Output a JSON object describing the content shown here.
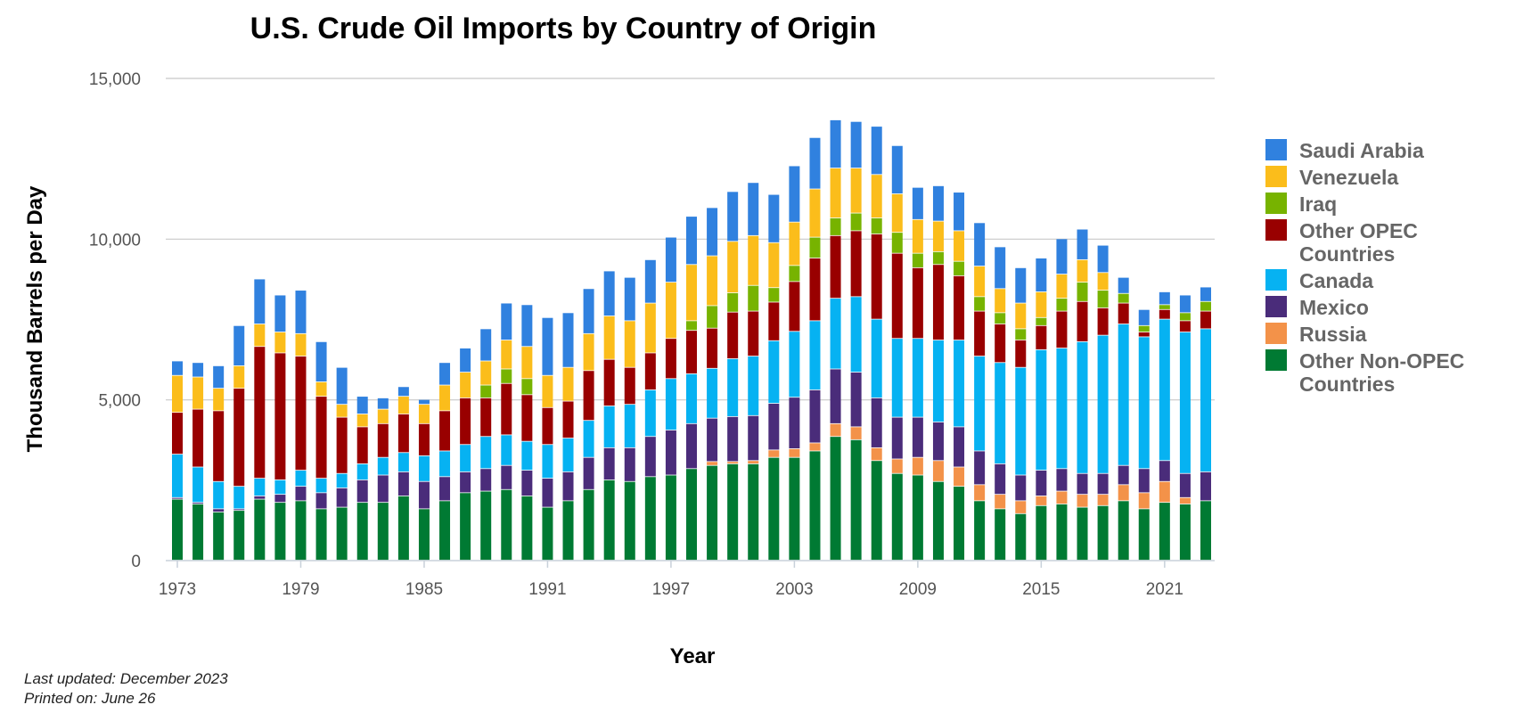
{
  "chart_data": {
    "type": "bar",
    "stacked": true,
    "title": "U.S. Crude Oil Imports by Country of Origin",
    "xlabel": "Year",
    "ylabel": "Thousand Barrels per Day",
    "ylim": [
      0,
      15000
    ],
    "yticks": [
      0,
      5000,
      10000,
      15000
    ],
    "ytick_labels": [
      "0",
      "5,000",
      "10,000",
      "15,000"
    ],
    "xtick_labels": [
      "1973",
      "1979",
      "1985",
      "1991",
      "1997",
      "2003",
      "2009",
      "2015",
      "2021"
    ],
    "grid": true,
    "legend_position": "right",
    "categories": [
      "1973",
      "1974",
      "1975",
      "1976",
      "1977",
      "1978",
      "1979",
      "1980",
      "1981",
      "1982",
      "1983",
      "1984",
      "1985",
      "1986",
      "1987",
      "1988",
      "1989",
      "1990",
      "1991",
      "1992",
      "1993",
      "1994",
      "1995",
      "1996",
      "1997",
      "1998",
      "1999",
      "2000",
      "2001",
      "2002",
      "2003",
      "2004",
      "2005",
      "2006",
      "2007",
      "2008",
      "2009",
      "2010",
      "2011",
      "2012",
      "2013",
      "2014",
      "2015",
      "2016",
      "2017",
      "2018",
      "2019",
      "2020",
      "2021",
      "2022",
      "2023"
    ],
    "series": [
      {
        "name": "Other Non-OPEC Countries",
        "color": "#007a33",
        "values": [
          1900,
          1750,
          1500,
          1550,
          1900,
          1800,
          1850,
          1600,
          1650,
          1800,
          1800,
          2000,
          1600,
          1850,
          2100,
          2150,
          2200,
          2000,
          1650,
          1850,
          2200,
          2500,
          2450,
          2600,
          2650,
          2850,
          2950,
          3000,
          3000,
          3200,
          3200,
          3400,
          3850,
          3750,
          3100,
          2700,
          2650,
          2450,
          2300,
          1850,
          1600,
          1450,
          1700,
          1750,
          1650,
          1700,
          1850,
          1600,
          1800,
          1750,
          1850
        ]
      },
      {
        "name": "Russia",
        "color": "#f39249",
        "values": [
          0,
          0,
          0,
          0,
          0,
          0,
          0,
          0,
          0,
          0,
          0,
          0,
          0,
          0,
          0,
          0,
          0,
          0,
          0,
          0,
          0,
          0,
          0,
          0,
          0,
          0,
          120,
          70,
          100,
          230,
          270,
          250,
          400,
          400,
          400,
          450,
          550,
          650,
          600,
          500,
          450,
          400,
          300,
          400,
          400,
          350,
          500,
          500,
          650,
          200,
          0
        ]
      },
      {
        "name": "Mexico",
        "color": "#4a2c7a",
        "values": [
          50,
          50,
          100,
          50,
          100,
          250,
          450,
          500,
          600,
          700,
          850,
          750,
          850,
          750,
          650,
          700,
          750,
          800,
          900,
          900,
          1000,
          1000,
          1050,
          1250,
          1400,
          1400,
          1350,
          1400,
          1400,
          1450,
          1600,
          1650,
          1700,
          1700,
          1550,
          1300,
          1250,
          1200,
          1250,
          1050,
          950,
          800,
          800,
          700,
          650,
          650,
          600,
          750,
          650,
          750,
          900
        ]
      },
      {
        "name": "Canada",
        "color": "#06b2f2",
        "values": [
          1350,
          1100,
          850,
          700,
          550,
          450,
          500,
          450,
          450,
          500,
          550,
          600,
          800,
          800,
          850,
          1000,
          950,
          900,
          1050,
          1050,
          1150,
          1300,
          1350,
          1450,
          1600,
          1550,
          1550,
          1800,
          1850,
          1950,
          2050,
          2150,
          2200,
          2350,
          2450,
          2450,
          2450,
          2550,
          2700,
          2950,
          3150,
          3350,
          3750,
          3750,
          4100,
          4300,
          4400,
          4100,
          4400,
          4400,
          4450
        ]
      },
      {
        "name": "Other OPEC Countries",
        "color": "#990000",
        "values": [
          1300,
          1800,
          2200,
          3050,
          4100,
          3950,
          3550,
          2550,
          1750,
          1150,
          1050,
          1200,
          1000,
          1250,
          1450,
          1200,
          1600,
          1450,
          1150,
          1150,
          1550,
          1450,
          1150,
          1150,
          1250,
          1350,
          1250,
          1450,
          1400,
          1200,
          1550,
          1950,
          1950,
          2050,
          2650,
          2650,
          2200,
          2350,
          2000,
          1400,
          1200,
          850,
          750,
          1150,
          1250,
          850,
          650,
          150,
          300,
          350,
          550
        ]
      },
      {
        "name": "Iraq",
        "color": "#77b300",
        "values": [
          0,
          0,
          0,
          0,
          0,
          0,
          0,
          0,
          0,
          0,
          0,
          0,
          0,
          0,
          0,
          400,
          450,
          500,
          0,
          0,
          0,
          0,
          0,
          0,
          0,
          300,
          700,
          600,
          800,
          450,
          500,
          650,
          550,
          550,
          500,
          650,
          450,
          400,
          450,
          450,
          350,
          350,
          250,
          400,
          600,
          550,
          300,
          200,
          150,
          250,
          300
        ]
      },
      {
        "name": "Venezuela",
        "color": "#fbbd1b",
        "values": [
          1150,
          1000,
          700,
          700,
          700,
          650,
          700,
          450,
          400,
          400,
          450,
          550,
          600,
          800,
          800,
          750,
          900,
          1000,
          1000,
          1050,
          1150,
          1350,
          1450,
          1550,
          1750,
          1750,
          1550,
          1600,
          1550,
          1400,
          1350,
          1500,
          1550,
          1400,
          1350,
          1200,
          1050,
          950,
          950,
          950,
          750,
          800,
          800,
          750,
          700,
          550,
          0,
          0,
          0,
          0,
          0
        ]
      },
      {
        "name": "Saudi Arabia",
        "color": "#3081df",
        "values": [
          450,
          450,
          700,
          1250,
          1400,
          1150,
          1350,
          1250,
          1150,
          550,
          350,
          300,
          150,
          700,
          750,
          1000,
          1150,
          1300,
          1800,
          1700,
          1400,
          1400,
          1350,
          1350,
          1400,
          1500,
          1500,
          1550,
          1650,
          1500,
          1750,
          1600,
          1500,
          1450,
          1500,
          1500,
          1000,
          1100,
          1200,
          1350,
          1300,
          1100,
          1050,
          1100,
          950,
          850,
          500,
          500,
          400,
          550,
          450
        ]
      }
    ]
  },
  "footer": {
    "last_updated": "Last updated: December 2023",
    "printed_on": "Printed on: June 26"
  }
}
